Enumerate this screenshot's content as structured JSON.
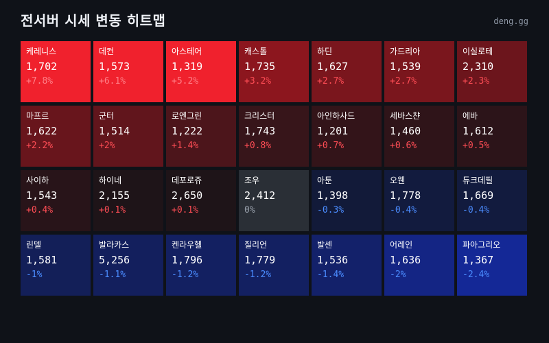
{
  "header": {
    "title": "전서버 시세 변동 히트맵",
    "brand": "deng.gg"
  },
  "colors": {
    "background": "#0f1218",
    "up_text": "#ff4d55",
    "up_text_on_bright": "#ff8088",
    "down_text": "#4b8cff",
    "flat_text": "#9aa2ad"
  },
  "servers": [
    {
      "name": "케레니스",
      "price": "1,702",
      "change": "+7.8%",
      "pct": 7.8
    },
    {
      "name": "데컨",
      "price": "1,573",
      "change": "+6.1%",
      "pct": 6.1
    },
    {
      "name": "아스테어",
      "price": "1,319",
      "change": "+5.2%",
      "pct": 5.2
    },
    {
      "name": "캐스톨",
      "price": "1,735",
      "change": "+3.2%",
      "pct": 3.2
    },
    {
      "name": "하딘",
      "price": "1,627",
      "change": "+2.7%",
      "pct": 2.7
    },
    {
      "name": "가드리아",
      "price": "1,539",
      "change": "+2.7%",
      "pct": 2.7
    },
    {
      "name": "이실로테",
      "price": "2,310",
      "change": "+2.3%",
      "pct": 2.3
    },
    {
      "name": "마프르",
      "price": "1,622",
      "change": "+2.2%",
      "pct": 2.2
    },
    {
      "name": "군터",
      "price": "1,514",
      "change": "+2%",
      "pct": 2.0
    },
    {
      "name": "로엔그린",
      "price": "1,222",
      "change": "+1.4%",
      "pct": 1.4
    },
    {
      "name": "크리스터",
      "price": "1,743",
      "change": "+0.8%",
      "pct": 0.8
    },
    {
      "name": "아인하사드",
      "price": "1,201",
      "change": "+0.7%",
      "pct": 0.7
    },
    {
      "name": "세바스챤",
      "price": "1,460",
      "change": "+0.6%",
      "pct": 0.6
    },
    {
      "name": "에바",
      "price": "1,612",
      "change": "+0.5%",
      "pct": 0.5
    },
    {
      "name": "사이하",
      "price": "1,543",
      "change": "+0.4%",
      "pct": 0.4
    },
    {
      "name": "하이네",
      "price": "2,155",
      "change": "+0.1%",
      "pct": 0.1
    },
    {
      "name": "데포로쥬",
      "price": "2,650",
      "change": "+0.1%",
      "pct": 0.1
    },
    {
      "name": "조우",
      "price": "2,412",
      "change": "0%",
      "pct": 0.0
    },
    {
      "name": "아툰",
      "price": "1,398",
      "change": "-0.3%",
      "pct": -0.3
    },
    {
      "name": "오웬",
      "price": "1,778",
      "change": "-0.4%",
      "pct": -0.4
    },
    {
      "name": "듀크데필",
      "price": "1,669",
      "change": "-0.4%",
      "pct": -0.4
    },
    {
      "name": "린델",
      "price": "1,581",
      "change": "-1%",
      "pct": -1.0
    },
    {
      "name": "발라카스",
      "price": "5,256",
      "change": "-1.1%",
      "pct": -1.1
    },
    {
      "name": "켄라우헬",
      "price": "1,796",
      "change": "-1.2%",
      "pct": -1.2
    },
    {
      "name": "질리언",
      "price": "1,779",
      "change": "-1.2%",
      "pct": -1.2
    },
    {
      "name": "발센",
      "price": "1,536",
      "change": "-1.4%",
      "pct": -1.4
    },
    {
      "name": "어레인",
      "price": "1,636",
      "change": "-2%",
      "pct": -2.0
    },
    {
      "name": "파아그리오",
      "price": "1,367",
      "change": "-2.4%",
      "pct": -2.4
    }
  ]
}
